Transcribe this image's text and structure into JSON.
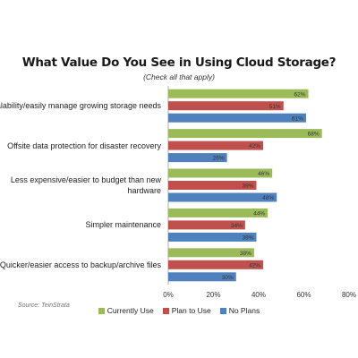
{
  "chart_data": {
    "type": "bar",
    "orientation": "horizontal",
    "title": "What Value Do You See in Using Cloud Storage?",
    "subtitle": "(Check all that apply)",
    "categories": [
      "Scalability/easily manage growing storage needs",
      "Offsite data protection for disaster recovery",
      "Less expensive/easier to budget than new hardware",
      "Simpler maintenance",
      "Quicker/easier access to backup/archive files"
    ],
    "series": [
      {
        "name": "Currently Use",
        "color": "#9bbb59",
        "values": [
          62,
          68,
          46,
          44,
          38
        ],
        "labels": [
          "62%",
          "68%",
          "46%",
          "44%",
          "38%"
        ]
      },
      {
        "name": "Plan to Use",
        "color": "#c0504d",
        "values": [
          51,
          42,
          39,
          34,
          42
        ],
        "labels": [
          "51%",
          "42%",
          "39%",
          "34%",
          "42%"
        ]
      },
      {
        "name": "No Plans",
        "color": "#4f81bd",
        "values": [
          61,
          26,
          48,
          39,
          30
        ],
        "labels": [
          "61%",
          "26%",
          "48%",
          "39%",
          "30%"
        ]
      }
    ],
    "xlim": [
      0,
      80
    ],
    "xticks": [
      0,
      20,
      40,
      60,
      80
    ],
    "xtick_labels": [
      "0%",
      "20%",
      "40%",
      "60%",
      "80%"
    ],
    "grid": false,
    "legend_position": "bottom"
  },
  "source": "Source: TeinStrata"
}
